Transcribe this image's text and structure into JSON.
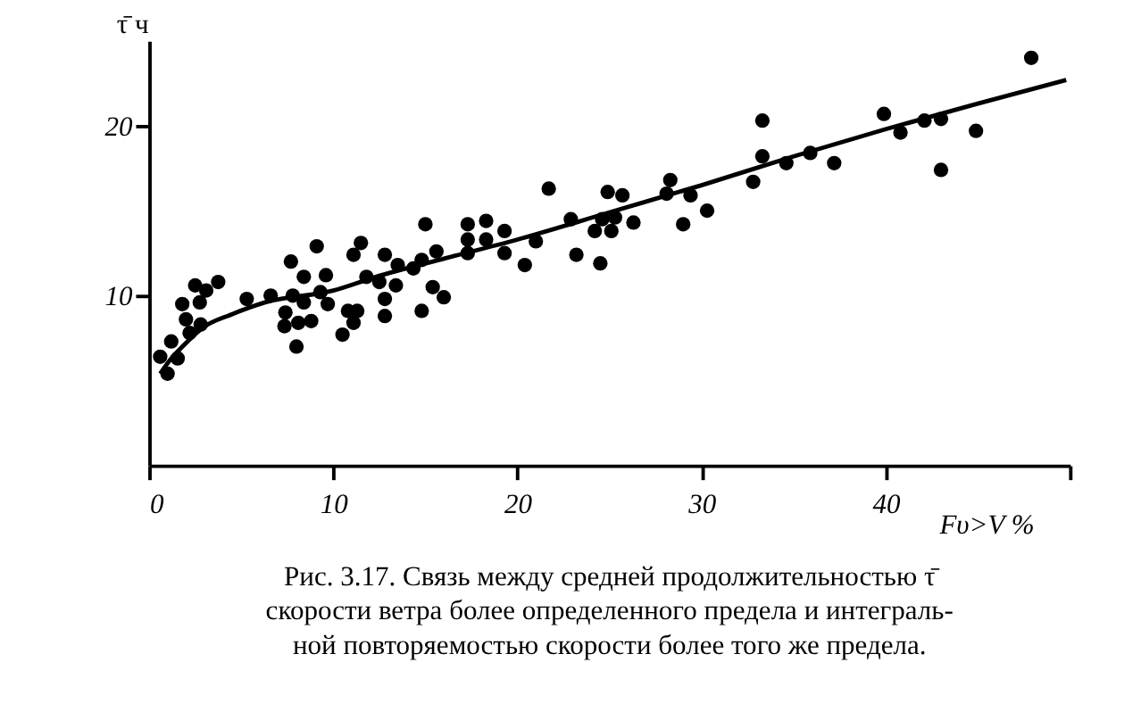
{
  "chart_data": {
    "type": "scatter",
    "xlabel": "Fυ>V %",
    "ylabel": "τ̄ ч",
    "xlim": [
      0,
      50
    ],
    "ylim": [
      0,
      25
    ],
    "xticks": [
      0,
      10,
      20,
      30,
      40,
      {
        "value": 50,
        "label": null
      }
    ],
    "yticks": [
      10,
      20
    ],
    "marker": "circle",
    "grid": false,
    "annotations": [
      "Рис. 3.17. Связь между средней продолжительностью τ̄",
      "скорости ветра более определенного предела и интеграль-",
      "ной повторяемостью скорости более того же предела."
    ],
    "series": [
      {
        "color": "#000000",
        "x": [
          0.6,
          1.0,
          1.2,
          1.55,
          1.8,
          2.0,
          2.2,
          2.5,
          2.75,
          2.8,
          3.1,
          3.75,
          5.3,
          6.6,
          7.7,
          7.4,
          7.35,
          7.8,
          8.1,
          8.0,
          8.4,
          8.4,
          8.8,
          9.1,
          9.3,
          9.6,
          9.7,
          10.5,
          10.8,
          11.1,
          11.1,
          11.3,
          11.5,
          11.8,
          12.5,
          12.8,
          12.8,
          12.8,
          13.4,
          13.5,
          14.35,
          14.8,
          14.8,
          15.0,
          15.4,
          15.6,
          16.0,
          17.3,
          17.3,
          17.3,
          18.3,
          18.3,
          19.3,
          19.3,
          20.4,
          21.0,
          21.7,
          22.9,
          23.2,
          24.2,
          24.5,
          24.6,
          24.9,
          25.1,
          25.3,
          25.7,
          26.3,
          28.1,
          28.3,
          29.0,
          29.4,
          30.3,
          32.8,
          33.3,
          33.3,
          34.6,
          35.9,
          37.2,
          39.9,
          40.8,
          42.1,
          43.0,
          43.0,
          44.9,
          47.9
        ],
        "values": [
          6.4,
          5.4,
          7.3,
          6.3,
          9.5,
          8.6,
          7.8,
          10.6,
          9.6,
          8.3,
          10.3,
          10.8,
          9.8,
          10.0,
          12.0,
          9.0,
          8.2,
          10.0,
          8.4,
          7.0,
          11.1,
          9.6,
          8.5,
          12.9,
          10.2,
          11.2,
          9.5,
          7.7,
          9.1,
          8.4,
          12.4,
          9.1,
          13.1,
          11.1,
          10.8,
          12.4,
          9.8,
          8.8,
          10.6,
          11.8,
          11.6,
          12.1,
          9.1,
          14.2,
          10.5,
          12.6,
          9.9,
          14.2,
          13.3,
          12.5,
          14.4,
          13.3,
          13.8,
          12.5,
          11.8,
          13.2,
          16.3,
          14.5,
          12.4,
          13.8,
          11.9,
          14.5,
          16.1,
          13.8,
          14.6,
          15.9,
          14.3,
          16.0,
          16.8,
          14.2,
          15.9,
          15.0,
          16.7,
          20.3,
          18.2,
          17.8,
          18.4,
          17.8,
          20.7,
          19.6,
          20.3,
          17.4,
          20.4,
          19.7,
          24.0
        ]
      },
      {
        "type": "line",
        "color": "#000000",
        "marker": "none",
        "x": [
          0.6,
          1.2,
          1.9,
          2.9,
          4.5,
          6.3,
          10,
          12.3,
          16.1,
          20,
          25,
          30,
          35,
          40,
          45,
          49.8
        ],
        "values": [
          5.4,
          6.3,
          7.1,
          8.1,
          8.9,
          9.6,
          10.3,
          11.1,
          12.2,
          13.3,
          14.9,
          16.5,
          18.2,
          19.8,
          21.3,
          22.7
        ]
      }
    ]
  }
}
